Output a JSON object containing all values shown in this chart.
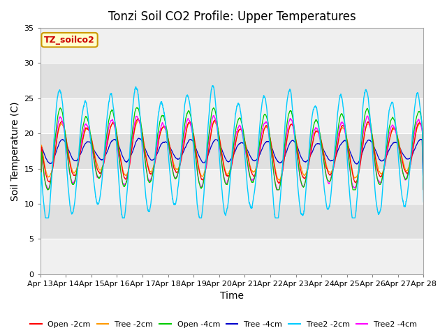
{
  "title": "Tonzi Soil CO2 Profile: Upper Temperatures",
  "xlabel": "Time",
  "ylabel": "Soil Temperature (C)",
  "xlim_start": 0,
  "xlim_end": 360,
  "ylim": [
    0,
    35
  ],
  "yticks": [
    0,
    5,
    10,
    15,
    20,
    25,
    30,
    35
  ],
  "xtick_labels": [
    "Apr 13",
    "Apr 14",
    "Apr 15",
    "Apr 16",
    "Apr 17",
    "Apr 18",
    "Apr 19",
    "Apr 20",
    "Apr 21",
    "Apr 22",
    "Apr 23",
    "Apr 24",
    "Apr 25",
    "Apr 26",
    "Apr 27",
    "Apr 28"
  ],
  "xtick_positions": [
    0,
    24,
    48,
    72,
    96,
    120,
    144,
    168,
    192,
    216,
    240,
    264,
    288,
    312,
    336,
    360
  ],
  "series": [
    {
      "label": "Open -2cm",
      "color": "#ff0000"
    },
    {
      "label": "Tree -2cm",
      "color": "#ff9900"
    },
    {
      "label": "Open -4cm",
      "color": "#00cc00"
    },
    {
      "label": "Tree -4cm",
      "color": "#0000cc"
    },
    {
      "label": "Tree2 -2cm",
      "color": "#00ccff"
    },
    {
      "label": "Tree2 -4cm",
      "color": "#ff00ff"
    }
  ],
  "legend_label": "TZ_soilco2",
  "legend_label_color": "#cc0000",
  "legend_bg": "#ffffcc",
  "legend_border": "#cc9900",
  "fig_bg": "#ffffff",
  "plot_bg_light": "#f0f0f0",
  "plot_bg_dark": "#e0e0e0",
  "grid_color": "#ffffff",
  "title_fontsize": 12,
  "axis_fontsize": 10,
  "tick_fontsize": 8
}
